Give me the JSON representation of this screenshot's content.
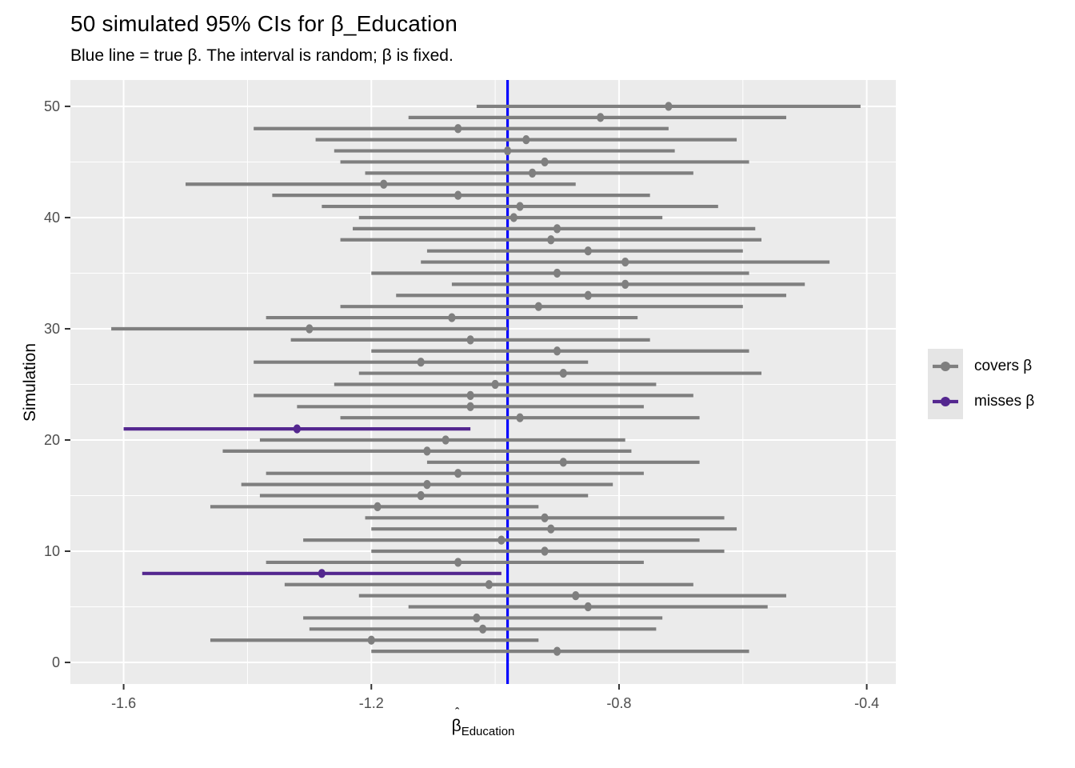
{
  "chart_data": {
    "type": "pointrange",
    "title": "50 simulated 95% CIs for β_Education",
    "subtitle": "Blue line = true β. The interval is random; β is fixed.",
    "xlabel_main": "β",
    "xlabel_hat": "ˆ",
    "xlabel_sub": "Education",
    "ylabel": "Simulation",
    "xlim": [
      -1.686,
      -0.353
    ],
    "ylim": [
      -1.94,
      52.37
    ],
    "x_ticks": [
      -1.6,
      -1.2,
      -0.8,
      -0.4
    ],
    "x_tick_labels": [
      "-1.6",
      "-1.2",
      "-0.8",
      "-0.4"
    ],
    "x_minor": [
      -1.4,
      -1.0,
      -0.6
    ],
    "y_ticks": [
      0,
      10,
      20,
      30,
      40,
      50
    ],
    "y_tick_labels": [
      "0",
      "10",
      "20",
      "30",
      "40",
      "50"
    ],
    "y_minor": [
      5,
      15,
      25,
      35,
      45
    ],
    "true_beta": -0.98,
    "grid": true,
    "legend_position": "right",
    "colors": {
      "covers": "#7F7F7F",
      "misses": "#54278F",
      "true_line": "#0000FF",
      "panel": "#EBEBEB",
      "grid": "#FFFFFF",
      "tick_text": "#4D4D4D",
      "tick_mark": "#333333"
    },
    "intervals": [
      {
        "sim": 1,
        "lo": -1.2,
        "est": -0.9,
        "hi": -0.59,
        "covers": true
      },
      {
        "sim": 2,
        "lo": -1.46,
        "est": -1.2,
        "hi": -0.93,
        "covers": true
      },
      {
        "sim": 3,
        "lo": -1.3,
        "est": -1.02,
        "hi": -0.74,
        "covers": true
      },
      {
        "sim": 4,
        "lo": -1.31,
        "est": -1.03,
        "hi": -0.73,
        "covers": true
      },
      {
        "sim": 5,
        "lo": -1.14,
        "est": -0.85,
        "hi": -0.56,
        "covers": true
      },
      {
        "sim": 6,
        "lo": -1.22,
        "est": -0.87,
        "hi": -0.53,
        "covers": true
      },
      {
        "sim": 7,
        "lo": -1.34,
        "est": -1.01,
        "hi": -0.68,
        "covers": true
      },
      {
        "sim": 8,
        "lo": -1.57,
        "est": -1.28,
        "hi": -0.99,
        "covers": false
      },
      {
        "sim": 9,
        "lo": -1.37,
        "est": -1.06,
        "hi": -0.76,
        "covers": true
      },
      {
        "sim": 10,
        "lo": -1.2,
        "est": -0.92,
        "hi": -0.63,
        "covers": true
      },
      {
        "sim": 11,
        "lo": -1.31,
        "est": -0.99,
        "hi": -0.67,
        "covers": true
      },
      {
        "sim": 12,
        "lo": -1.2,
        "est": -0.91,
        "hi": -0.61,
        "covers": true
      },
      {
        "sim": 13,
        "lo": -1.21,
        "est": -0.92,
        "hi": -0.63,
        "covers": true
      },
      {
        "sim": 14,
        "lo": -1.46,
        "est": -1.19,
        "hi": -0.93,
        "covers": true
      },
      {
        "sim": 15,
        "lo": -1.38,
        "est": -1.12,
        "hi": -0.85,
        "covers": true
      },
      {
        "sim": 16,
        "lo": -1.41,
        "est": -1.11,
        "hi": -0.81,
        "covers": true
      },
      {
        "sim": 17,
        "lo": -1.37,
        "est": -1.06,
        "hi": -0.76,
        "covers": true
      },
      {
        "sim": 18,
        "lo": -1.11,
        "est": -0.89,
        "hi": -0.67,
        "covers": true
      },
      {
        "sim": 19,
        "lo": -1.44,
        "est": -1.11,
        "hi": -0.78,
        "covers": true
      },
      {
        "sim": 20,
        "lo": -1.38,
        "est": -1.08,
        "hi": -0.79,
        "covers": true
      },
      {
        "sim": 21,
        "lo": -1.6,
        "est": -1.32,
        "hi": -1.04,
        "covers": false
      },
      {
        "sim": 22,
        "lo": -1.25,
        "est": -0.96,
        "hi": -0.67,
        "covers": true
      },
      {
        "sim": 23,
        "lo": -1.32,
        "est": -1.04,
        "hi": -0.76,
        "covers": true
      },
      {
        "sim": 24,
        "lo": -1.39,
        "est": -1.04,
        "hi": -0.68,
        "covers": true
      },
      {
        "sim": 25,
        "lo": -1.26,
        "est": -1.0,
        "hi": -0.74,
        "covers": true
      },
      {
        "sim": 26,
        "lo": -1.22,
        "est": -0.89,
        "hi": -0.57,
        "covers": true
      },
      {
        "sim": 27,
        "lo": -1.39,
        "est": -1.12,
        "hi": -0.85,
        "covers": true
      },
      {
        "sim": 28,
        "lo": -1.2,
        "est": -0.9,
        "hi": -0.59,
        "covers": true
      },
      {
        "sim": 29,
        "lo": -1.33,
        "est": -1.04,
        "hi": -0.75,
        "covers": true
      },
      {
        "sim": 30,
        "lo": -1.62,
        "est": -1.3,
        "hi": -0.98,
        "covers": true
      },
      {
        "sim": 31,
        "lo": -1.37,
        "est": -1.07,
        "hi": -0.77,
        "covers": true
      },
      {
        "sim": 32,
        "lo": -1.25,
        "est": -0.93,
        "hi": -0.6,
        "covers": true
      },
      {
        "sim": 33,
        "lo": -1.16,
        "est": -0.85,
        "hi": -0.53,
        "covers": true
      },
      {
        "sim": 34,
        "lo": -1.07,
        "est": -0.79,
        "hi": -0.5,
        "covers": true
      },
      {
        "sim": 35,
        "lo": -1.2,
        "est": -0.9,
        "hi": -0.59,
        "covers": true
      },
      {
        "sim": 36,
        "lo": -1.12,
        "est": -0.79,
        "hi": -0.46,
        "covers": true
      },
      {
        "sim": 37,
        "lo": -1.11,
        "est": -0.85,
        "hi": -0.6,
        "covers": true
      },
      {
        "sim": 38,
        "lo": -1.25,
        "est": -0.91,
        "hi": -0.57,
        "covers": true
      },
      {
        "sim": 39,
        "lo": -1.23,
        "est": -0.9,
        "hi": -0.58,
        "covers": true
      },
      {
        "sim": 40,
        "lo": -1.22,
        "est": -0.97,
        "hi": -0.73,
        "covers": true
      },
      {
        "sim": 41,
        "lo": -1.28,
        "est": -0.96,
        "hi": -0.64,
        "covers": true
      },
      {
        "sim": 42,
        "lo": -1.36,
        "est": -1.06,
        "hi": -0.75,
        "covers": true
      },
      {
        "sim": 43,
        "lo": -1.5,
        "est": -1.18,
        "hi": -0.87,
        "covers": true
      },
      {
        "sim": 44,
        "lo": -1.21,
        "est": -0.94,
        "hi": -0.68,
        "covers": true
      },
      {
        "sim": 45,
        "lo": -1.25,
        "est": -0.92,
        "hi": -0.59,
        "covers": true
      },
      {
        "sim": 46,
        "lo": -1.26,
        "est": -0.98,
        "hi": -0.71,
        "covers": true
      },
      {
        "sim": 47,
        "lo": -1.29,
        "est": -0.95,
        "hi": -0.61,
        "covers": true
      },
      {
        "sim": 48,
        "lo": -1.39,
        "est": -1.06,
        "hi": -0.72,
        "covers": true
      },
      {
        "sim": 49,
        "lo": -1.14,
        "est": -0.83,
        "hi": -0.53,
        "covers": true
      },
      {
        "sim": 50,
        "lo": -1.03,
        "est": -0.72,
        "hi": -0.41,
        "covers": true
      }
    ]
  },
  "legend": {
    "items": [
      {
        "label": "covers β",
        "color": "#7F7F7F"
      },
      {
        "label": "misses β",
        "color": "#54278F"
      }
    ]
  }
}
